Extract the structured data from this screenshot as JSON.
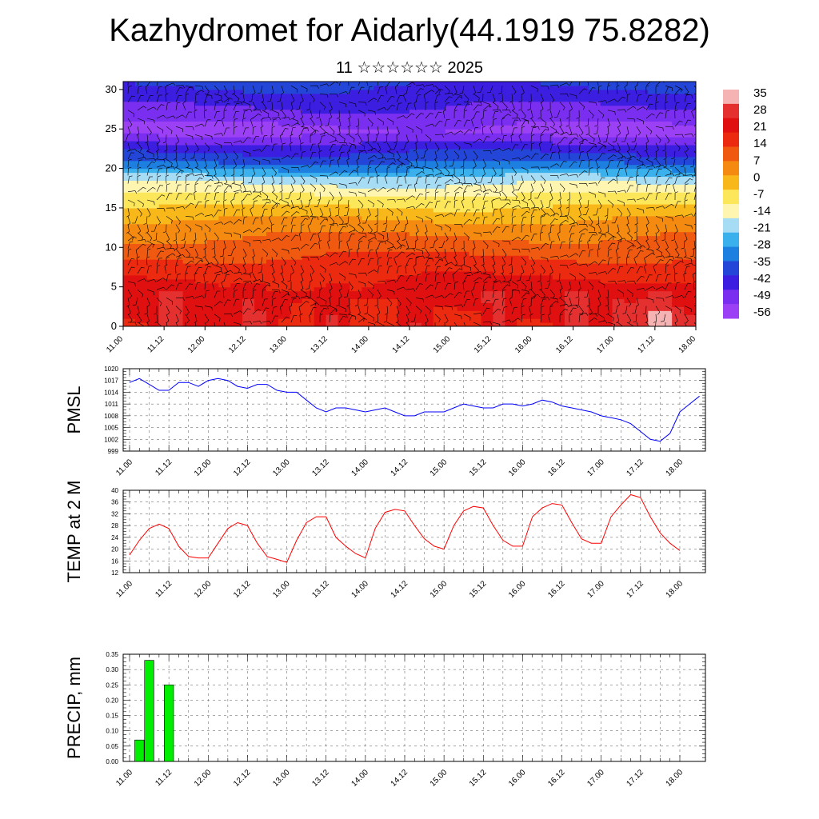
{
  "title": "Kazhydromet for Aidarly(44.1919 75.8282)",
  "subtitle": "11 ☆☆☆☆☆☆ 2025",
  "colorbar": {
    "labels": [
      "35",
      "28",
      "21",
      "14",
      "7",
      "0",
      "-7",
      "-14",
      "-21",
      "-28",
      "-35",
      "-42",
      "-49",
      "-56"
    ],
    "colors": [
      "#f6b3b3",
      "#e53030",
      "#e01010",
      "#ec2a10",
      "#f05a10",
      "#f58a10",
      "#f9b81a",
      "#fce65a",
      "#fef6b0",
      "#a7dcf5",
      "#3ab0ec",
      "#1d7fe0",
      "#2446d8",
      "#3b1ee0",
      "#7a2ef0",
      "#9b40f5"
    ]
  },
  "chart_data": [
    {
      "type": "heatmap",
      "name": "cross-section",
      "x_ticks": [
        "11.00",
        "11.12",
        "12.00",
        "12.12",
        "13.00",
        "13.12",
        "14.00",
        "14.12",
        "15.00",
        "15.12",
        "16.00",
        "16.12",
        "17.00",
        "17.12",
        "18.00"
      ],
      "y_ticks": [
        0,
        5,
        10,
        15,
        20,
        25,
        30
      ],
      "ylim": [
        0,
        31
      ],
      "levels": [
        0,
        2,
        4,
        6,
        8,
        10,
        12,
        14,
        16,
        18,
        20,
        22,
        24,
        26,
        28,
        30
      ],
      "field": "temperature with wind barbs",
      "profile_by_level": [
        18,
        20,
        22,
        19,
        15,
        10,
        5,
        -2,
        -10,
        -20,
        -35,
        -45,
        -56,
        -50,
        -45,
        -40
      ]
    },
    {
      "type": "line",
      "name": "pmsl",
      "ylabel": "PMSL",
      "ylim": [
        999,
        1020
      ],
      "y_ticks": [
        999,
        1002,
        1005,
        1008,
        1011,
        1014,
        1017,
        1020
      ],
      "x_ticks": [
        "11.00",
        "11.12",
        "12.00",
        "12.12",
        "13.00",
        "13.12",
        "14.00",
        "14.12",
        "15.00",
        "15.12",
        "16.00",
        "16.12",
        "17.00",
        "17.12",
        "18.00"
      ],
      "x_step_hours": 3,
      "color": "#0000ff",
      "values": [
        1016.5,
        1017.5,
        1016,
        1014.5,
        1014.5,
        1016.5,
        1016.5,
        1015.5,
        1017,
        1017.5,
        1017,
        1015.5,
        1015,
        1016,
        1016,
        1014.5,
        1014,
        1014,
        1012,
        1010,
        1009,
        1010,
        1010,
        1009.5,
        1009,
        1009.5,
        1010,
        1009,
        1008,
        1008,
        1009,
        1009,
        1009,
        1010,
        1011,
        1010.5,
        1010,
        1010,
        1011,
        1011,
        1010.5,
        1011,
        1012,
        1011.5,
        1010.5,
        1010,
        1009.5,
        1009,
        1008,
        1007.5,
        1007,
        1006,
        1004,
        1002,
        1001.5,
        1003.5,
        1009,
        1011,
        1013
      ]
    },
    {
      "type": "line",
      "name": "temp2m",
      "ylabel": "TEMP at 2 M",
      "ylim": [
        12,
        40
      ],
      "y_ticks": [
        12,
        16,
        20,
        24,
        28,
        32,
        36,
        40
      ],
      "x_ticks": [
        "11.00",
        "11.12",
        "12.00",
        "12.12",
        "13.00",
        "13.12",
        "14.00",
        "14.12",
        "15.00",
        "15.12",
        "16.00",
        "16.12",
        "17.00",
        "17.12",
        "18.00"
      ],
      "x_step_hours": 3,
      "color": "#ff0000",
      "values": [
        18,
        23,
        27,
        28.5,
        27,
        21,
        17.5,
        17,
        17,
        22,
        27,
        29,
        28,
        22,
        17.5,
        16.5,
        15.5,
        23,
        29,
        31,
        31,
        24,
        21,
        18.5,
        17,
        27,
        32.5,
        33.5,
        33,
        28,
        23.5,
        21,
        20,
        28,
        33,
        34.5,
        34,
        28,
        23,
        21,
        21,
        31,
        34,
        35.5,
        35,
        29,
        23.5,
        22,
        22,
        31,
        35,
        38.5,
        37.5,
        31,
        25.5,
        22,
        19.5
      ]
    },
    {
      "type": "bar",
      "name": "precip",
      "ylabel": "PRECIP, mm",
      "ylim": [
        0,
        0.35
      ],
      "y_ticks": [
        "0.00",
        "0.05",
        "0.10",
        "0.15",
        "0.20",
        "0.25",
        "0.30",
        "0.35"
      ],
      "x_ticks": [
        "11.00",
        "11.12",
        "12.00",
        "12.12",
        "13.00",
        "13.12",
        "14.00",
        "14.12",
        "15.00",
        "15.12",
        "16.00",
        "16.12",
        "17.00",
        "17.12",
        "18.00"
      ],
      "x_step_hours": 3,
      "color": "#00ee00",
      "values": [
        0,
        0.07,
        0.33,
        0,
        0.25
      ]
    }
  ]
}
